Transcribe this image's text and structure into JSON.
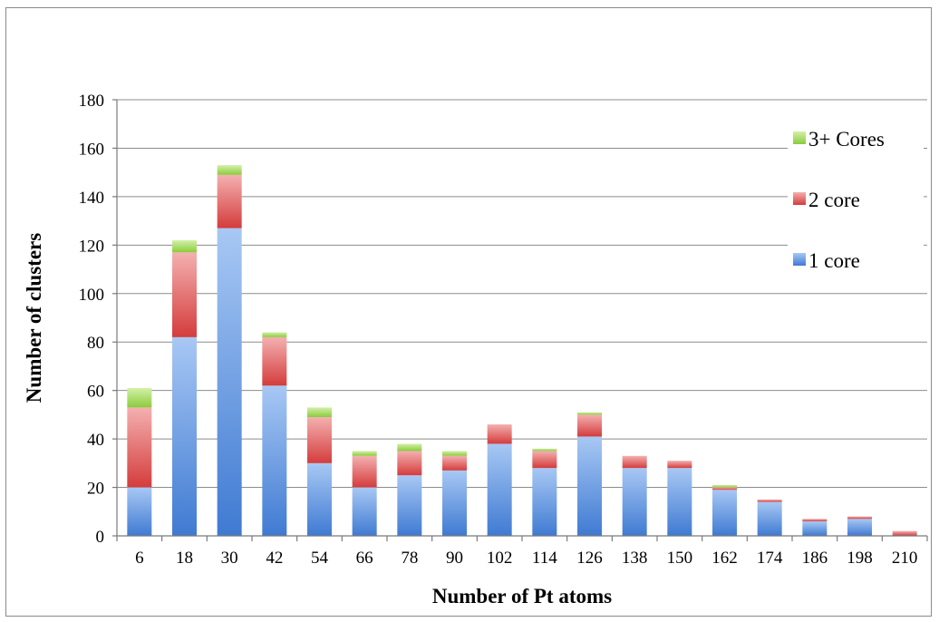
{
  "chart_data": {
    "type": "bar",
    "stacked": true,
    "title": "",
    "xlabel": "Number of Pt atoms",
    "ylabel": "Number of clusters",
    "ylim": [
      0,
      180
    ],
    "yticks": [
      0,
      20,
      40,
      60,
      80,
      100,
      120,
      140,
      160,
      180
    ],
    "grid": true,
    "legend_position": "right",
    "categories": [
      "6",
      "18",
      "30",
      "42",
      "54",
      "66",
      "78",
      "90",
      "102",
      "114",
      "126",
      "138",
      "150",
      "162",
      "174",
      "186",
      "198",
      "210"
    ],
    "series": [
      {
        "name": "1 core",
        "color": "#4a86d8",
        "values": [
          20,
          82,
          127,
          62,
          30,
          20,
          25,
          27,
          38,
          28,
          41,
          28,
          28,
          19,
          14,
          6,
          7,
          0
        ]
      },
      {
        "name": "2 core",
        "color": "#d94a4a",
        "values": [
          33,
          35,
          22,
          20,
          19,
          13,
          10,
          6,
          8,
          7,
          9,
          5,
          3,
          1,
          1,
          1,
          1,
          2
        ]
      },
      {
        "name": "3+ Cores",
        "color": "#9ed64a",
        "values": [
          8,
          5,
          4,
          2,
          4,
          2,
          3,
          2,
          0,
          1,
          1,
          0,
          0,
          1,
          0,
          0,
          0,
          0
        ]
      }
    ]
  }
}
